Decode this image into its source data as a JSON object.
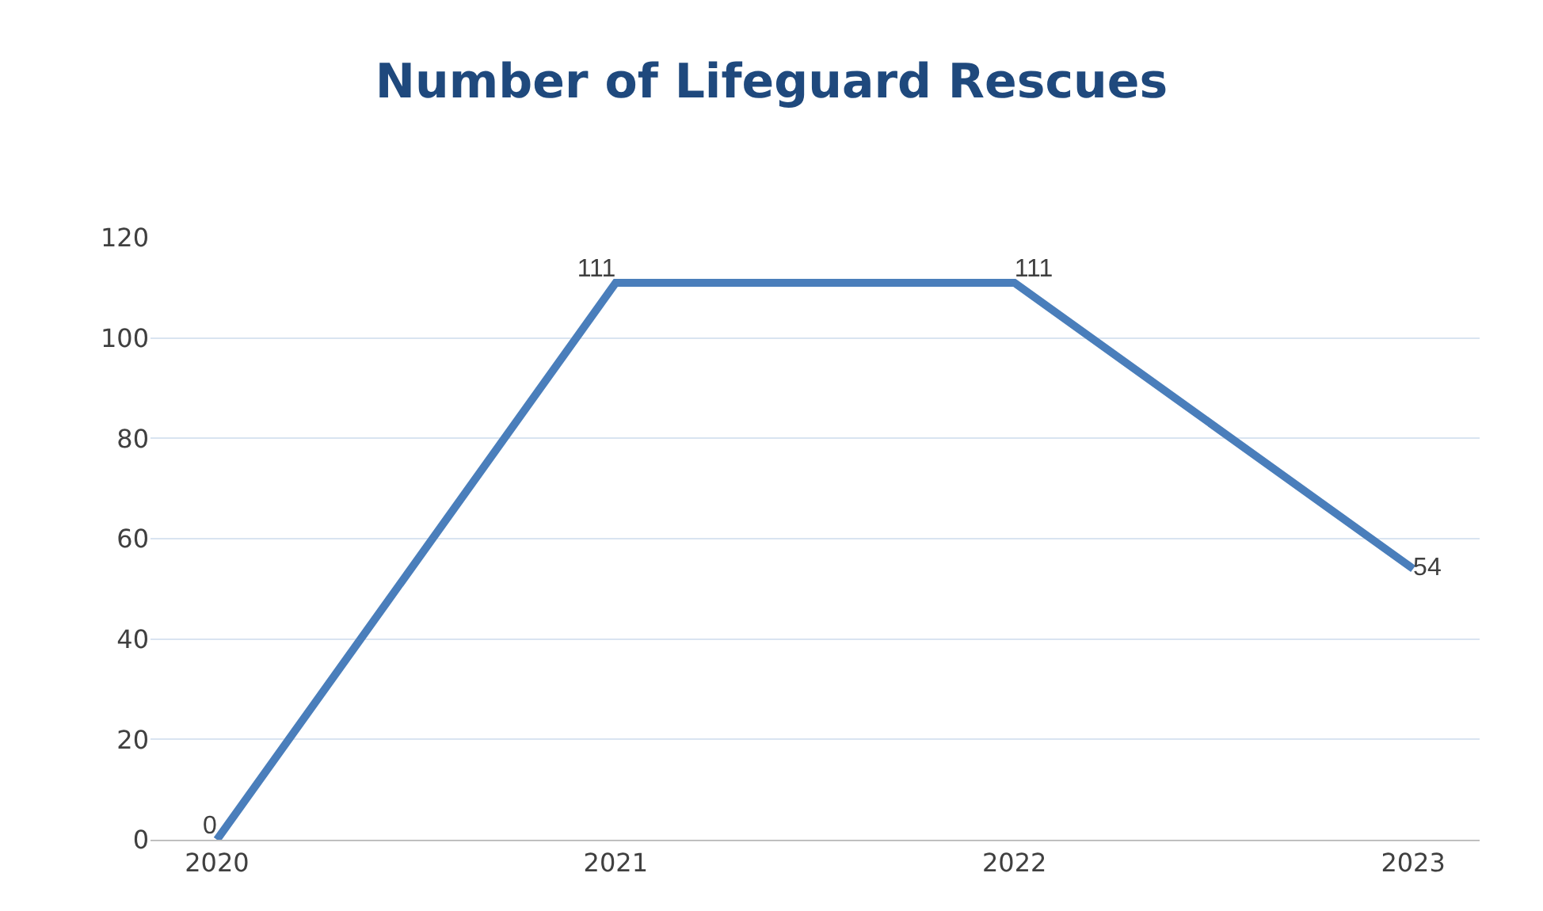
{
  "chart_data": {
    "type": "line",
    "title": "Number of Lifeguard Rescues",
    "categories": [
      "2020",
      "2021",
      "2022",
      "2023"
    ],
    "series": [
      {
        "color": "#4a7ebb",
        "values": [
          0,
          111,
          111,
          54
        ]
      }
    ],
    "ylim": [
      0,
      120
    ],
    "yticks": [
      0,
      20,
      40,
      60,
      80,
      100,
      120
    ],
    "grid": "y",
    "data_labels": true,
    "marker": "none",
    "line_style": "solid"
  }
}
